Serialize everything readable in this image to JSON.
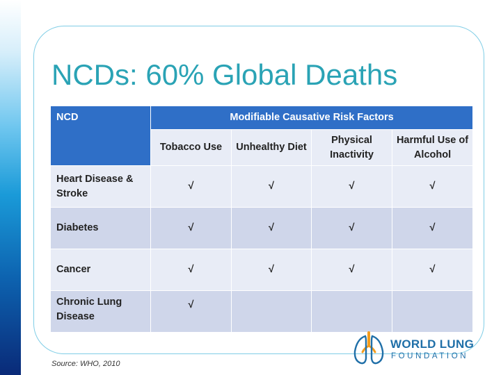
{
  "slide": {
    "title": "NCDs: 60% Global Deaths",
    "source": "Source:  WHO, 2010"
  },
  "table": {
    "col1_header": "NCD",
    "group_header": "Modifiable Causative Risk Factors",
    "sub_headers": [
      "Tobacco Use",
      "Unhealthy Diet",
      "Physical Inactivity",
      "Harmful Use of Alcohol"
    ],
    "rows": [
      {
        "label": "Heart Disease & Stroke",
        "cells": [
          "√",
          "√",
          "√",
          "√"
        ]
      },
      {
        "label": "Diabetes",
        "cells": [
          "√",
          "√",
          "√",
          "√"
        ]
      },
      {
        "label": "Cancer",
        "cells": [
          "√",
          "√",
          "√",
          "√"
        ]
      },
      {
        "label": "Chronic Lung Disease",
        "cells": [
          "√",
          "",
          "",
          ""
        ]
      }
    ]
  },
  "logo": {
    "line1": "WORLD LUNG",
    "line2": "FOUNDATION",
    "icon": "lungs-icon"
  },
  "colors": {
    "title": "#2aa3b5",
    "header_blue": "#2f6fc7",
    "row_light": "#e8ecf6",
    "row_dark": "#cfd6ea",
    "frame": "#7fcde6",
    "logo_blue": "#1f6fa8",
    "logo_orange": "#f39c1d"
  }
}
